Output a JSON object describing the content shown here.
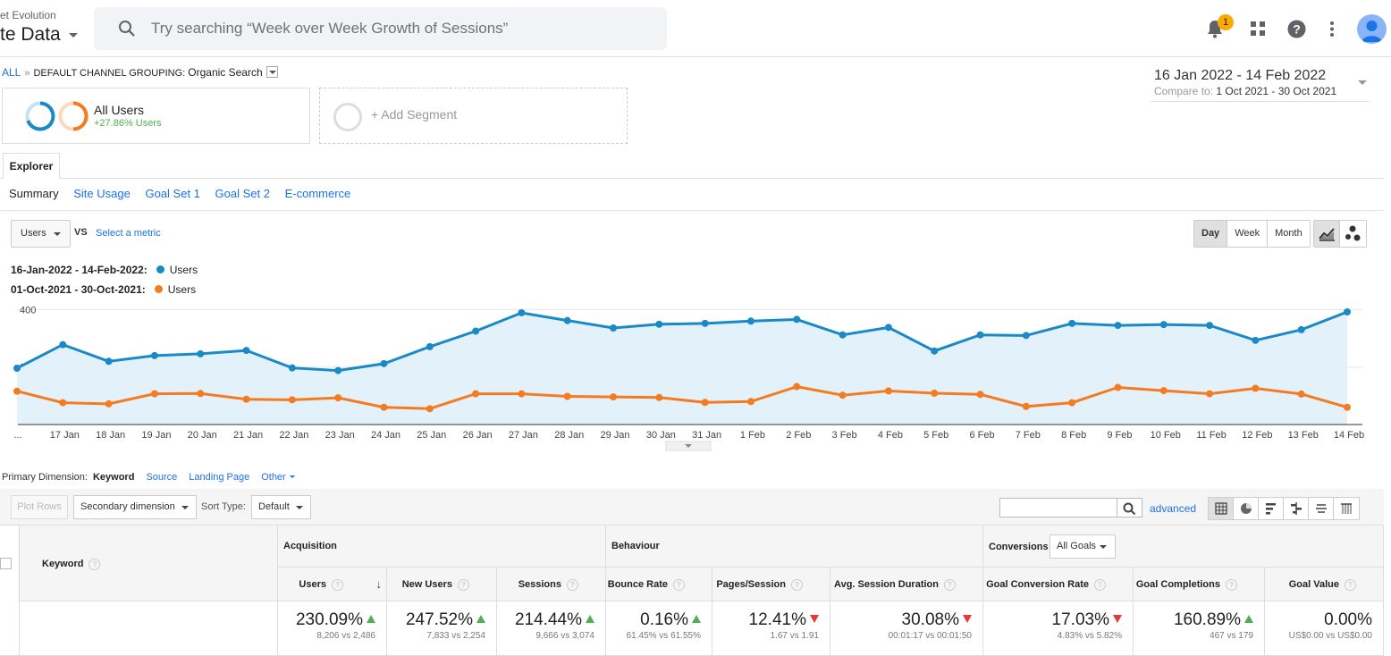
{
  "header": {
    "account_sub": "et Evolution",
    "account_title": "te Data",
    "search_placeholder": "Try searching “Week over Week Growth of Sessions”",
    "notification_count": "1"
  },
  "breadcrumb": {
    "all": "ALL",
    "separator": "»",
    "grouping_label": "DEFAULT CHANNEL GROUPING:",
    "grouping_value": "Organic Search"
  },
  "daterange": {
    "main": "16 Jan 2022 - 14 Feb 2022",
    "compare_label": "Compare to:",
    "compare_value": "1 Oct 2021 - 30 Oct 2021"
  },
  "segments": {
    "segment1_name": "All Users",
    "segment1_change": "+27.86% Users",
    "add_segment": "+ Add Segment"
  },
  "tabs": {
    "explorer": "Explorer",
    "subtabs": [
      "Summary",
      "Site Usage",
      "Goal Set 1",
      "Goal Set 2",
      "E-commerce"
    ]
  },
  "chart_controls": {
    "metric": "Users",
    "vs": "VS",
    "select_metric": "Select a metric",
    "periods": [
      "Day",
      "Week",
      "Month"
    ],
    "active_period": "Day"
  },
  "legend": {
    "row1_range": "16-Jan-2022 - 14-Feb-2022:",
    "row1_metric": "Users",
    "row2_range": "01-Oct-2021 - 30-Oct-2021:",
    "row2_metric": "Users"
  },
  "colors": {
    "primary": "#1a8ac6",
    "comparison": "#f47b20",
    "fill": "#e3f1fa"
  },
  "chart_data": {
    "type": "line",
    "x": [
      "...",
      "17 Jan",
      "18 Jan",
      "19 Jan",
      "20 Jan",
      "21 Jan",
      "22 Jan",
      "23 Jan",
      "24 Jan",
      "25 Jan",
      "26 Jan",
      "27 Jan",
      "28 Jan",
      "29 Jan",
      "30 Jan",
      "31 Jan",
      "1 Feb",
      "2 Feb",
      "3 Feb",
      "4 Feb",
      "5 Feb",
      "6 Feb",
      "7 Feb",
      "8 Feb",
      "9 Feb",
      "10 Feb",
      "11 Feb",
      "12 Feb",
      "13 Feb",
      "14 Feb"
    ],
    "yticks": [
      200,
      400
    ],
    "ylim": [
      0,
      420
    ],
    "series": [
      {
        "values": [
          196,
          278,
          220,
          240,
          246,
          258,
          197,
          188,
          212,
          271,
          325,
          389,
          362,
          336,
          349,
          352,
          360,
          366,
          312,
          338,
          256,
          312,
          310,
          352,
          345,
          348,
          345,
          293,
          330,
          392
        ]
      },
      {
        "values": [
          116,
          76,
          72,
          107,
          108,
          88,
          86,
          93,
          60,
          55,
          107,
          107,
          98,
          96,
          94,
          77,
          80,
          132,
          102,
          117,
          109,
          105,
          63,
          76,
          129,
          118,
          107,
          126,
          106,
          60
        ]
      }
    ]
  },
  "primary_dimension": {
    "label": "Primary Dimension:",
    "active": "Keyword",
    "options": [
      "Source",
      "Landing Page",
      "Other"
    ]
  },
  "toolbar": {
    "plot_rows": "Plot Rows",
    "secondary_dimension": "Secondary dimension",
    "sort_type_label": "Sort Type:",
    "sort_type_value": "Default",
    "advanced": "advanced"
  },
  "table": {
    "keyword_header": "Keyword",
    "groups": {
      "acquisition": "Acquisition",
      "behaviour": "Behaviour",
      "conversions": "Conversions",
      "goals_select": "All Goals"
    },
    "columns": [
      {
        "label": "Users",
        "value": "230.09%",
        "sub": "8,206 vs 2,486",
        "trend": "up"
      },
      {
        "label": "New Users",
        "value": "247.52%",
        "sub": "7,833 vs 2,254",
        "trend": "up"
      },
      {
        "label": "Sessions",
        "value": "214.44%",
        "sub": "9,666 vs 3,074",
        "trend": "up"
      },
      {
        "label": "Bounce Rate",
        "value": "0.16%",
        "sub": "61.45% vs 61.55%",
        "trend": "up"
      },
      {
        "label": "Pages/Session",
        "value": "12.41%",
        "sub": "1.67 vs 1.91",
        "trend": "down"
      },
      {
        "label": "Avg. Session Duration",
        "value": "30.08%",
        "sub": "00:01:17 vs 00:01:50",
        "trend": "down"
      },
      {
        "label": "Goal Conversion Rate",
        "value": "17.03%",
        "sub": "4.83% vs 5.82%",
        "trend": "down"
      },
      {
        "label": "Goal Completions",
        "value": "160.89%",
        "sub": "467 vs 179",
        "trend": "up"
      },
      {
        "label": "Goal Value",
        "value": "0.00%",
        "sub": "US$0.00 vs US$0.00",
        "trend": "none"
      }
    ]
  }
}
